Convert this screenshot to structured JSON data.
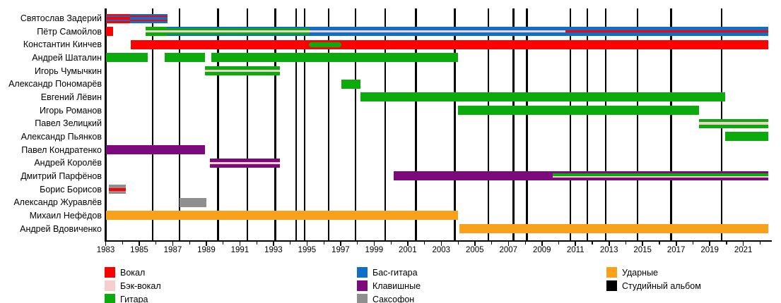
{
  "chart_data": {
    "type": "timeline",
    "title": "",
    "x_axis": {
      "range": [
        1983,
        2022.6
      ],
      "tick_years": [
        1983,
        1985,
        1987,
        1989,
        1991,
        1993,
        1995,
        1997,
        1999,
        2001,
        2003,
        2005,
        2007,
        2009,
        2011,
        2013,
        2015,
        2017,
        2019,
        2021
      ],
      "tick_labels": [
        "1983",
        "1985",
        "1987",
        "1989",
        "1991",
        "1993",
        "1995",
        "1997",
        "1999",
        "2001",
        "2003",
        "2005",
        "2007",
        "2009",
        "2011",
        "2013",
        "2015",
        "2017",
        "2019",
        "2021"
      ],
      "minor_tick_step": 1
    },
    "roles": {
      "vocal": {
        "label": "Вокал",
        "color": "#ff0000"
      },
      "backing": {
        "label": "Бэк-вокал",
        "color": "#f6cecd"
      },
      "guitar": {
        "label": "Гитара",
        "color": "#0aab0a"
      },
      "bass": {
        "label": "Бас-гитара",
        "color": "#0d6fc8"
      },
      "keys": {
        "label": "Клавишные",
        "color": "#7c0a7c"
      },
      "sax": {
        "label": "Саксофон",
        "color": "#8f8f8f"
      },
      "drums": {
        "label": "Ударные",
        "color": "#f9a11b"
      },
      "album": {
        "label": "Студийный альбом",
        "color": "#000000"
      }
    },
    "members": [
      {
        "name": "Святослав Задерий",
        "bars": [
          {
            "start": 1983,
            "end": 1984.45,
            "role": "vocal",
            "stripes": [
              {
                "role": "bass",
                "f0": 0.2,
                "f1": 0.36
              },
              {
                "role": "bass",
                "f0": 0.64,
                "f1": 0.8
              }
            ]
          },
          {
            "start": 1984.45,
            "end": 1986.7,
            "role": "bass",
            "stripes": [
              {
                "role": "vocal",
                "f0": 0.2,
                "f1": 0.36
              },
              {
                "role": "vocal",
                "f0": 0.64,
                "f1": 0.8
              }
            ]
          }
        ]
      },
      {
        "name": "Пётр Самойлов",
        "bars": [
          {
            "start": 1983,
            "end": 1983.45,
            "role": "vocal",
            "stripes": []
          },
          {
            "start": 1985.4,
            "end": 1986.65,
            "role": "guitar",
            "stripes": [
              {
                "role": "backing",
                "f0": 0.38,
                "f1": 0.62
              }
            ]
          },
          {
            "start": 1986.65,
            "end": 1995.15,
            "role": "bass",
            "stripes": [
              {
                "role": "guitar",
                "f0": 0.18,
                "f1": 0.38
              },
              {
                "role": "backing",
                "f0": 0.38,
                "f1": 0.62
              },
              {
                "role": "guitar",
                "f0": 0.62,
                "f1": 0.82
              }
            ]
          },
          {
            "start": 1995.15,
            "end": 2010.4,
            "role": "bass",
            "stripes": [
              {
                "role": "backing",
                "f0": 0.38,
                "f1": 0.62
              }
            ]
          },
          {
            "start": 2010.4,
            "end": 2022.5,
            "role": "bass",
            "stripes": [
              {
                "role": "vocal",
                "f0": 0.38,
                "f1": 0.62
              }
            ]
          }
        ]
      },
      {
        "name": "Константин Кинчев",
        "bars": [
          {
            "start": 1984.5,
            "end": 2022.5,
            "role": "vocal",
            "stripes": []
          },
          {
            "start": 1995.1,
            "end": 1997.05,
            "role": "guitar",
            "overlay": true,
            "stripes": []
          }
        ]
      },
      {
        "name": "Андрей Шаталин",
        "bars": [
          {
            "start": 1983,
            "end": 1985.5,
            "role": "guitar",
            "stripes": []
          },
          {
            "start": 1986.5,
            "end": 1988.9,
            "role": "guitar",
            "stripes": []
          },
          {
            "start": 1989.3,
            "end": 2004.0,
            "role": "guitar",
            "stripes": []
          }
        ]
      },
      {
        "name": "Игорь Чумычкин",
        "bars": [
          {
            "start": 1988.9,
            "end": 1993.4,
            "role": "guitar",
            "stripes": [
              {
                "role": "backing",
                "f0": 0.38,
                "f1": 0.62
              }
            ]
          }
        ]
      },
      {
        "name": "Александр Пономарёв",
        "bars": [
          {
            "start": 1997.05,
            "end": 1998.2,
            "role": "guitar",
            "stripes": []
          }
        ]
      },
      {
        "name": "Евгений Лёвин",
        "bars": [
          {
            "start": 1998.2,
            "end": 2019.9,
            "role": "guitar",
            "stripes": []
          }
        ]
      },
      {
        "name": "Игорь Романов",
        "bars": [
          {
            "start": 2004.0,
            "end": 2018.35,
            "role": "guitar",
            "stripes": []
          }
        ]
      },
      {
        "name": "Павел Зелицкий",
        "bars": [
          {
            "start": 2018.35,
            "end": 2022.5,
            "role": "guitar",
            "stripes": [
              {
                "role": "backing",
                "f0": 0.33,
                "f1": 0.67
              }
            ]
          }
        ]
      },
      {
        "name": "Александр Пьянков",
        "bars": [
          {
            "start": 2019.9,
            "end": 2022.5,
            "role": "guitar",
            "stripes": []
          }
        ]
      },
      {
        "name": "Павел Кондратенко",
        "bars": [
          {
            "start": 1983,
            "end": 1988.9,
            "role": "keys",
            "stripes": []
          }
        ]
      },
      {
        "name": "Андрей Королёв",
        "bars": [
          {
            "start": 1989.2,
            "end": 1993.4,
            "role": "keys",
            "stripes": [
              {
                "role": "backing",
                "f0": 0.38,
                "f1": 0.62
              }
            ]
          }
        ]
      },
      {
        "name": "Дмитрий Парфёнов",
        "bars": [
          {
            "start": 2000.15,
            "end": 2009.65,
            "role": "keys",
            "stripes": []
          },
          {
            "start": 2009.65,
            "end": 2022.5,
            "role": "keys",
            "stripes": [
              {
                "role": "guitar",
                "f0": 0.17,
                "f1": 0.5
              },
              {
                "role": "backing",
                "f0": 0.5,
                "f1": 0.67
              }
            ]
          }
        ]
      },
      {
        "name": "Борис Борисов",
        "bars": [
          {
            "start": 1983.2,
            "end": 1984.2,
            "role": "sax",
            "stripes": [
              {
                "role": "vocal",
                "f0": 0.35,
                "f1": 0.65
              }
            ]
          }
        ]
      },
      {
        "name": "Александр Журавлёв",
        "bars": [
          {
            "start": 1987.4,
            "end": 1989.0,
            "role": "sax",
            "stripes": []
          }
        ]
      },
      {
        "name": "Михаил Нефёдов",
        "bars": [
          {
            "start": 1983,
            "end": 2004.0,
            "role": "drums",
            "stripes": []
          }
        ]
      },
      {
        "name": "Андрей Вдовиченко",
        "bars": [
          {
            "start": 2004.1,
            "end": 2022.5,
            "role": "drums",
            "stripes": []
          }
        ]
      }
    ],
    "album_years": [
      1985.8,
      1987.4,
      1989.7,
      1991.45,
      1993.1,
      1994.35,
      1994.85,
      1996.3,
      1997.9,
      1999.65,
      2001.5,
      2003.8,
      2005.8,
      2007.3,
      2008.1,
      2010.7,
      2011.7,
      2012.8,
      2014.7,
      2016.7,
      2019.7
    ],
    "legend_columns": [
      [
        "vocal",
        "backing",
        "guitar"
      ],
      [
        "bass",
        "keys",
        "sax"
      ],
      [
        "drums",
        "album"
      ]
    ]
  }
}
